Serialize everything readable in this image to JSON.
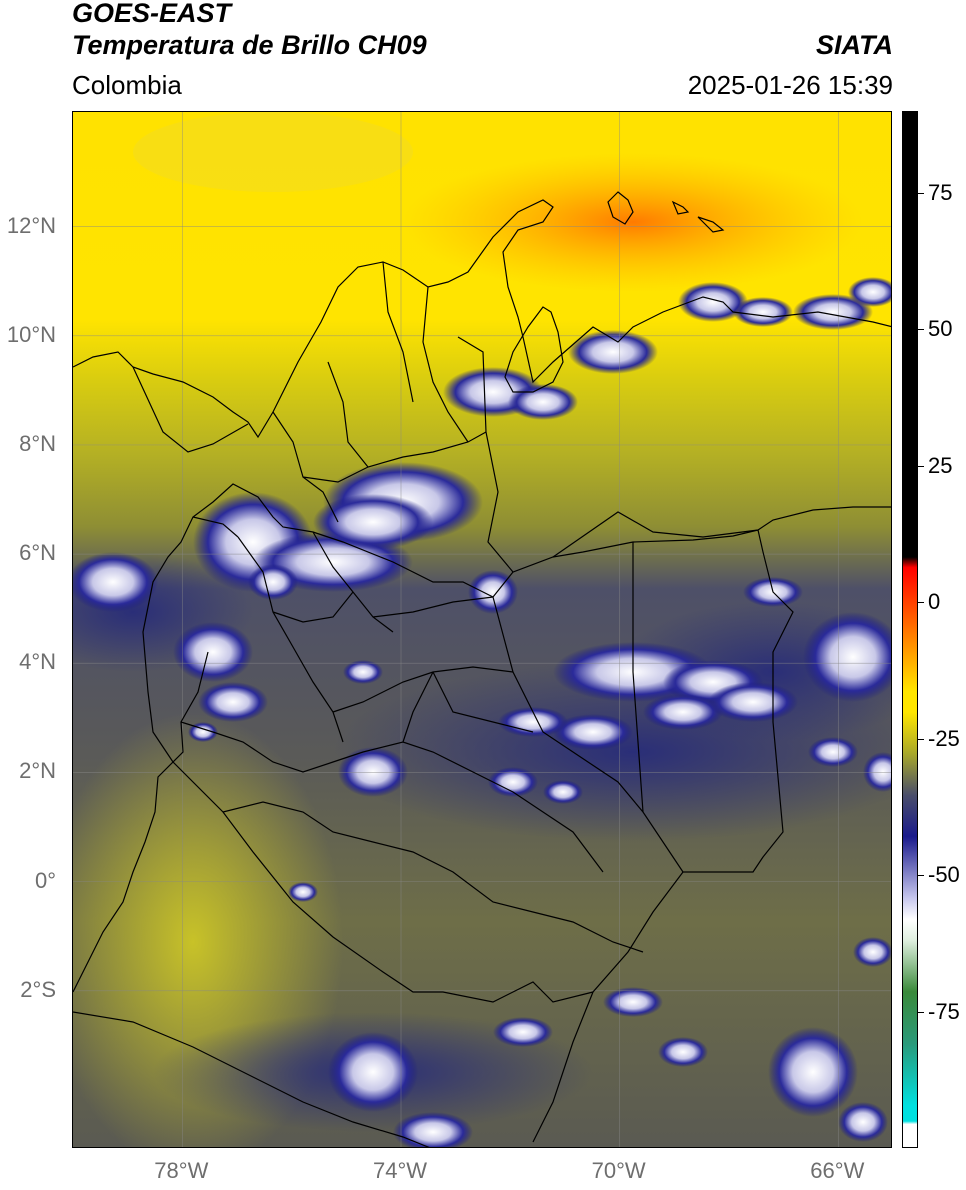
{
  "header": {
    "satellite": "GOES-EAST",
    "product": "Temperatura de Brillo CH09",
    "agency": "SIATA",
    "region": "Colombia",
    "timestamp": "2025-01-26 15:39"
  },
  "map": {
    "lat_range": [
      -4.9,
      14.1
    ],
    "lon_range": [
      -80.0,
      -65.0
    ],
    "lat_ticks": [
      {
        "value": 12,
        "label": "12°N"
      },
      {
        "value": 10,
        "label": "10°N"
      },
      {
        "value": 8,
        "label": "8°N"
      },
      {
        "value": 6,
        "label": "6°N"
      },
      {
        "value": 4,
        "label": "4°N"
      },
      {
        "value": 2,
        "label": "2°N"
      },
      {
        "value": 0,
        "label": "0°"
      },
      {
        "value": -2,
        "label": "2°S"
      }
    ],
    "lon_ticks": [
      {
        "value": -78,
        "label": "78°W"
      },
      {
        "value": -74,
        "label": "74°W"
      },
      {
        "value": -70,
        "label": "70°W"
      },
      {
        "value": -66,
        "label": "66°W"
      }
    ],
    "gridlines": true,
    "field_colors": {
      "warm": "#ffe600",
      "hot": "#ff8c00",
      "mid": "#a8a82a",
      "cool": "#4a4e6a",
      "cold": "#1a1a8c",
      "very_cold": "#f0f0f8",
      "coldest": "#3a8a3a"
    }
  },
  "colorbar": {
    "range": [
      -100,
      90
    ],
    "ticks": [
      {
        "value": 75,
        "label": "75"
      },
      {
        "value": 50,
        "label": "50"
      },
      {
        "value": 25,
        "label": "25"
      },
      {
        "value": 0,
        "label": "0"
      },
      {
        "value": -25,
        "label": "-25"
      },
      {
        "value": -50,
        "label": "-50"
      },
      {
        "value": -75,
        "label": "-75"
      }
    ]
  }
}
